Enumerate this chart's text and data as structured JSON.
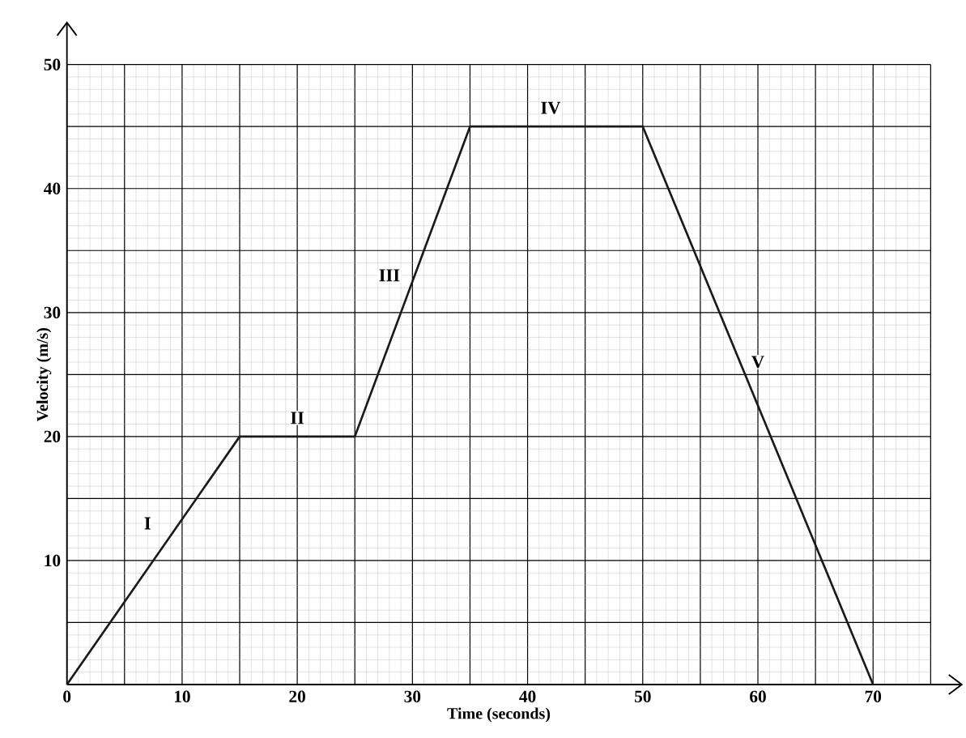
{
  "chart_data": {
    "type": "line",
    "xlabel": "Time (seconds)",
    "ylabel": "Velocity (m/s)",
    "x": [
      0,
      15,
      25,
      35,
      50,
      70
    ],
    "series": [
      {
        "color": "#1a1a1a",
        "values": [
          0,
          20,
          20,
          45,
          45,
          0
        ]
      }
    ],
    "xlim": [
      0,
      75
    ],
    "ylim": [
      0,
      50
    ],
    "xticks": [
      0,
      {
        "value": 5,
        "label": null
      },
      10,
      {
        "value": 15,
        "label": null
      },
      20,
      {
        "value": 25,
        "label": null
      },
      30,
      {
        "value": 35,
        "label": null
      },
      40,
      {
        "value": 45,
        "label": null
      },
      50,
      {
        "value": 55,
        "label": null
      },
      60,
      {
        "value": 65,
        "label": null
      },
      70,
      {
        "value": 75,
        "label": null
      }
    ],
    "yticks": [
      {
        "value": 0,
        "label": null
      },
      {
        "value": 5,
        "label": null
      },
      10,
      {
        "value": 15,
        "label": null
      },
      20,
      {
        "value": 25,
        "label": null
      },
      30,
      {
        "value": 35,
        "label": null
      },
      40,
      {
        "value": 45,
        "label": null
      },
      50
    ],
    "grid": true,
    "marker": "none",
    "line_style": "solid",
    "annotations": [
      {
        "text": "I",
        "x": 7,
        "y": 13
      },
      {
        "text": "II",
        "x": 20,
        "y": 21.5
      },
      {
        "text": "III",
        "x": 28,
        "y": 33
      },
      {
        "text": "IV",
        "x": 42,
        "y": 46.5
      },
      {
        "text": "V",
        "x": 60,
        "y": 26
      }
    ]
  }
}
